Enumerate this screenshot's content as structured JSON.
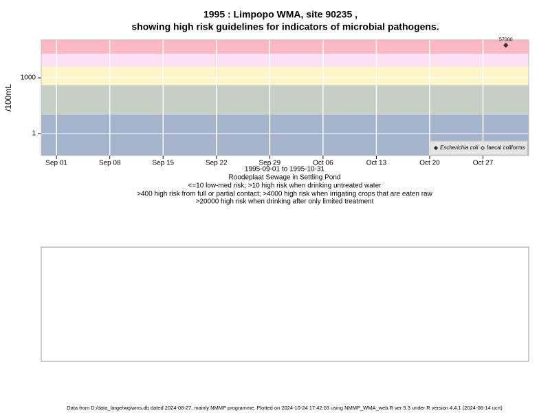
{
  "chart_data": {
    "type": "scatter",
    "title": "1995 : Limpopo WMA, site 90235 ,",
    "subtitle": "showing high risk guidelines for indicators of microbial pathogens.",
    "y_label": "/100mL",
    "x_range_label": "1995-09-01 to 1995-10-31",
    "site_label": "Roodeplaat Sewage in Settling Pond",
    "notes": [
      "<=10 low-med risk; >10 high risk when drinking untreated water",
      ">400 high risk from full or partial contact; >4000 high risk when irrigating crops that are eaten raw",
      ">20000 high risk when drinking after only limited treatment"
    ],
    "footer": "Data from D:/data_large/wq/wms.db dated 2024-08-27, mainly NMMP programme. Plotted on 2024-10-24 17:42:03 using NMMP_WMA_web.R ver 9.3 under R version 4.4.1 (2024-06-14 ucrt)",
    "log_y": true,
    "ylim": [
      0.065,
      110000
    ],
    "yticks": [
      1,
      1000
    ],
    "xlim": [
      "1995-08-30",
      "1995-11-02"
    ],
    "xticks": [
      {
        "value": "1995-09-01",
        "label": "Sep 01"
      },
      {
        "value": "1995-09-08",
        "label": "Sep 08"
      },
      {
        "value": "1995-09-15",
        "label": "Sep 15"
      },
      {
        "value": "1995-09-22",
        "label": "Sep 22"
      },
      {
        "value": "1995-09-29",
        "label": "Sep 29"
      },
      {
        "value": "1995-10-06",
        "label": "Oct 06"
      },
      {
        "value": "1995-10-13",
        "label": "Oct 13"
      },
      {
        "value": "1995-10-20",
        "label": "Oct 20"
      },
      {
        "value": "1995-10-27",
        "label": "Oct 27"
      }
    ],
    "band_breaks": [
      10,
      400,
      4000,
      20000
    ],
    "band_colors": [
      "#a3b4cc",
      "#c5cfc5",
      "#fdf5c8",
      "#fde0f3",
      "#fdb8c4"
    ],
    "grid": true,
    "legend_position": "bottom-right",
    "series": [
      {
        "name": "Escherichia coli",
        "color": "#333333",
        "marker": "filled-diamond",
        "x": [
          "1995-10-30"
        ],
        "values": [
          57000
        ]
      },
      {
        "name": "faecal coliforms",
        "color": "#333333",
        "marker": "open-diamond",
        "x": [],
        "values": []
      }
    ]
  }
}
